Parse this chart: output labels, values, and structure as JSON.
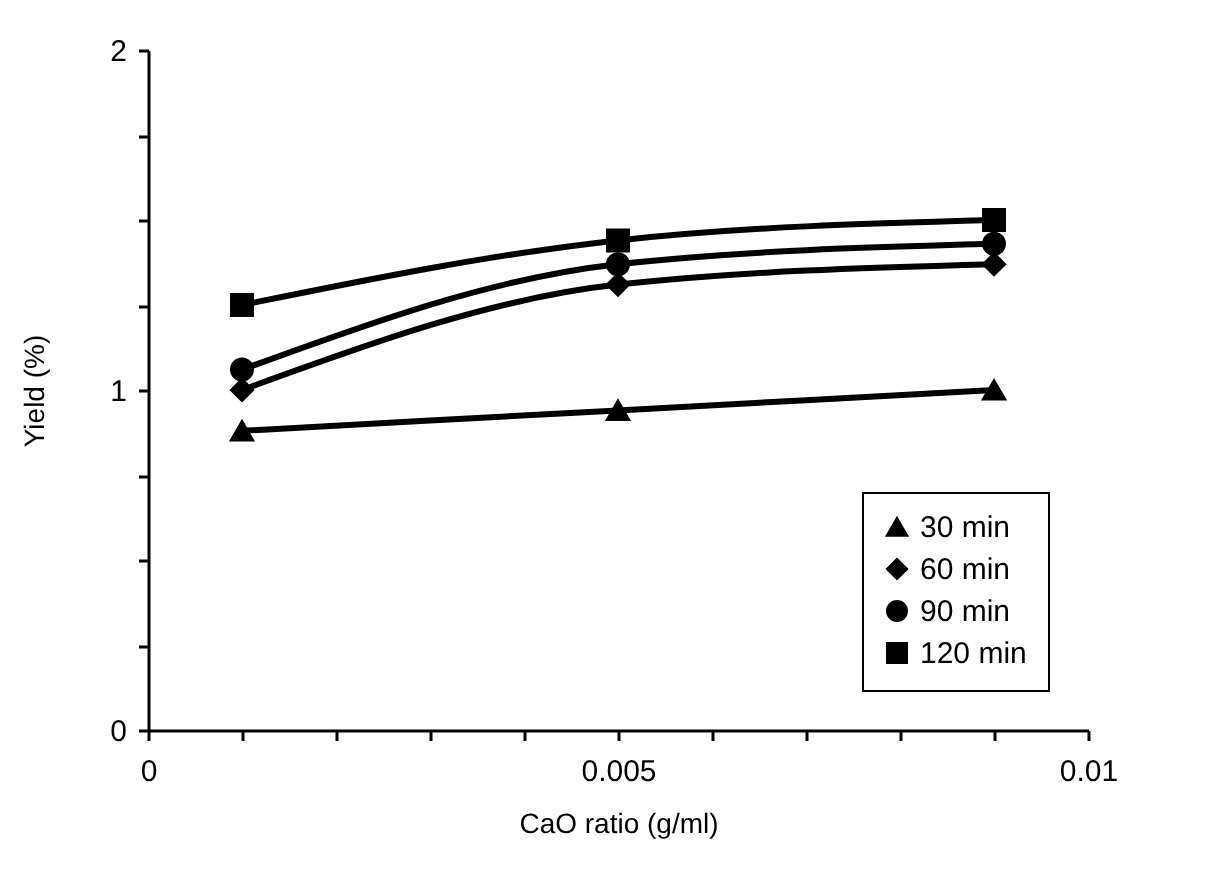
{
  "chart_data": {
    "type": "line",
    "xlabel": "CaO ratio (g/ml)",
    "ylabel": "Yield (%)",
    "x": [
      0.001,
      0.005,
      0.009
    ],
    "series": [
      {
        "name": "30 min",
        "color": "#000000",
        "marker": "triangle",
        "values": [
          0.88,
          0.94,
          1.0
        ]
      },
      {
        "name": "60 min",
        "color": "#000000",
        "marker": "diamond",
        "values": [
          1.0,
          1.31,
          1.37
        ]
      },
      {
        "name": "90 min",
        "color": "#000000",
        "marker": "circle",
        "values": [
          1.06,
          1.37,
          1.43
        ]
      },
      {
        "name": "120 min",
        "color": "#000000",
        "marker": "square",
        "values": [
          1.25,
          1.44,
          1.5
        ]
      }
    ],
    "xlim": [
      0,
      0.01
    ],
    "xticks": [
      0,
      {
        "value": 0.001,
        "label": null
      },
      {
        "value": 0.002,
        "label": null
      },
      {
        "value": 0.003,
        "label": null
      },
      {
        "value": 0.004,
        "label": null
      },
      0.005,
      {
        "value": 0.006,
        "label": null
      },
      {
        "value": 0.007,
        "label": null
      },
      {
        "value": 0.008,
        "label": null
      },
      {
        "value": 0.009,
        "label": null
      },
      0.01
    ],
    "ylim": [
      0,
      2
    ],
    "yticks": [
      0,
      {
        "value": 0.25,
        "label": null
      },
      {
        "value": 0.5,
        "label": null
      },
      {
        "value": 0.75,
        "label": null
      },
      1,
      {
        "value": 1.25,
        "label": null
      },
      {
        "value": 1.5,
        "label": null
      },
      {
        "value": 1.75,
        "label": null
      },
      2
    ],
    "grid": false,
    "legend": "bottom right",
    "line_style": "solid"
  }
}
